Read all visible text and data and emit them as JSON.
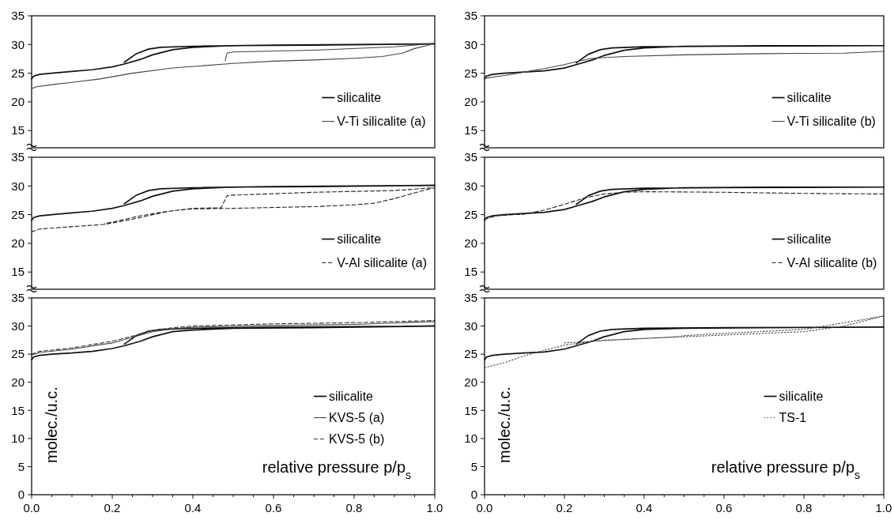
{
  "chart_data": [
    {
      "type": "line",
      "xlim": [
        0,
        1
      ],
      "ylim": [
        12,
        35
      ],
      "yticks": [
        15,
        20,
        25,
        30,
        35
      ],
      "tick_labels": "y",
      "legend": "bottom right",
      "series": [
        {
          "name": "silicalite",
          "color": "#111111",
          "line_style": "solid",
          "x": [
            0,
            0.005,
            0.02,
            0.05,
            0.1,
            0.15,
            0.2,
            0.23,
            0.27,
            0.3,
            0.35,
            0.4,
            0.5,
            0.7,
            1,
            0.6,
            0.4,
            0.32,
            0.29,
            0.26,
            0.23
          ],
          "values": [
            24,
            24.5,
            24.8,
            25,
            25.3,
            25.6,
            26.1,
            26.6,
            27.4,
            28.2,
            29.1,
            29.5,
            29.8,
            29.9,
            30.1,
            29.9,
            29.7,
            29.5,
            29.2,
            28.4,
            26.9
          ]
        },
        {
          "name": "V-Ti silicalite (a)",
          "color": "#444444",
          "line_style": "solid",
          "x": [
            0,
            0.01,
            0.05,
            0.1,
            0.17,
            0.25,
            0.35,
            0.5,
            0.6,
            0.7,
            0.8,
            0.87,
            0.92,
            0.95,
            0.98,
            1,
            0.9,
            0.7,
            0.5,
            0.485,
            0.48
          ],
          "values": [
            22.3,
            22.6,
            23,
            23.4,
            24,
            25,
            25.9,
            26.7,
            27.1,
            27.3,
            27.6,
            27.9,
            28.5,
            29.3,
            29.8,
            30.2,
            29.6,
            29,
            28.7,
            28.5,
            27.2
          ]
        }
      ]
    },
    {
      "type": "line",
      "xlim": [
        0,
        1
      ],
      "ylim": [
        12,
        35
      ],
      "yticks": [
        15,
        20,
        25,
        30,
        35
      ],
      "tick_labels": "y",
      "legend": "bottom right",
      "series": [
        {
          "name": "silicalite",
          "color": "#111111",
          "line_style": "solid",
          "x": [
            0,
            0.005,
            0.02,
            0.05,
            0.1,
            0.15,
            0.2,
            0.23,
            0.27,
            0.3,
            0.35,
            0.4,
            0.5,
            0.7,
            1,
            0.6,
            0.4,
            0.32,
            0.29,
            0.26,
            0.23
          ],
          "values": [
            24,
            24.5,
            24.8,
            25,
            25.2,
            25.4,
            25.9,
            26.5,
            27.3,
            28.1,
            29,
            29.4,
            29.7,
            29.8,
            29.8,
            29.7,
            29.6,
            29.4,
            29.1,
            28.3,
            26.8
          ]
        },
        {
          "name": "V-Ti silicalite (b)",
          "color": "#444444",
          "line_style": "solid",
          "x": [
            0,
            0.05,
            0.1,
            0.15,
            0.2,
            0.23,
            0.27,
            0.35,
            0.5,
            0.7,
            0.9,
            1
          ],
          "values": [
            24.1,
            24.6,
            25.2,
            25.8,
            26.5,
            27,
            27.6,
            27.9,
            28.2,
            28.4,
            28.5,
            28.8
          ]
        }
      ]
    },
    {
      "type": "line",
      "xlim": [
        0,
        1
      ],
      "ylim": [
        12,
        35
      ],
      "yticks": [
        15,
        20,
        25,
        30,
        35
      ],
      "tick_labels": "y",
      "legend": "bottom right",
      "series": [
        {
          "name": "silicalite",
          "color": "#111111",
          "line_style": "solid",
          "x": [
            0,
            0.005,
            0.02,
            0.05,
            0.1,
            0.15,
            0.2,
            0.23,
            0.27,
            0.3,
            0.35,
            0.4,
            0.5,
            0.7,
            1,
            0.6,
            0.4,
            0.32,
            0.29,
            0.26,
            0.23
          ],
          "values": [
            24,
            24.5,
            24.8,
            25,
            25.3,
            25.6,
            26.1,
            26.6,
            27.4,
            28.2,
            29.1,
            29.5,
            29.8,
            29.9,
            30.1,
            29.9,
            29.7,
            29.5,
            29.2,
            28.4,
            26.9
          ]
        },
        {
          "name": "V-Al silicalite (a)",
          "color": "#222222",
          "line_style": "dashed",
          "x": [
            0,
            0.02,
            0.1,
            0.18,
            0.25,
            0.3,
            0.35,
            0.4,
            0.5,
            0.7,
            0.8,
            0.85,
            0.9,
            0.95,
            1,
            0.9,
            0.7,
            0.5,
            0.485,
            0.47,
            0.4,
            0.33,
            0.27,
            0.22,
            0.18
          ],
          "values": [
            22,
            22.5,
            22.9,
            23.3,
            24.2,
            25,
            25.7,
            26,
            26.1,
            26.4,
            26.7,
            27,
            27.8,
            28.8,
            29.7,
            29.2,
            28.9,
            28.4,
            28.3,
            26.2,
            26.1,
            25.5,
            24.8,
            24,
            23.4
          ]
        }
      ]
    },
    {
      "type": "line",
      "xlim": [
        0,
        1
      ],
      "ylim": [
        12,
        35
      ],
      "yticks": [
        15,
        20,
        25,
        30,
        35
      ],
      "tick_labels": "y",
      "legend": "bottom right",
      "series": [
        {
          "name": "silicalite",
          "color": "#111111",
          "line_style": "solid",
          "x": [
            0,
            0.005,
            0.02,
            0.05,
            0.1,
            0.15,
            0.2,
            0.23,
            0.27,
            0.3,
            0.35,
            0.4,
            0.5,
            0.7,
            1,
            0.6,
            0.4,
            0.32,
            0.29,
            0.26,
            0.23
          ],
          "values": [
            24,
            24.5,
            24.8,
            25,
            25.2,
            25.4,
            25.9,
            26.5,
            27.3,
            28.1,
            29,
            29.4,
            29.7,
            29.8,
            29.8,
            29.7,
            29.6,
            29.4,
            29.1,
            28.3,
            26.8
          ]
        },
        {
          "name": "V-Al silicalite (b)",
          "color": "#222222",
          "line_style": "dashed",
          "x": [
            0,
            0.03,
            0.1,
            0.15,
            0.2,
            0.25,
            0.3,
            0.35,
            0.4,
            0.6,
            0.8,
            1
          ],
          "values": [
            24.2,
            24.8,
            25.1,
            25.8,
            26.8,
            27.9,
            28.6,
            28.9,
            29,
            28.9,
            28.7,
            28.6
          ]
        }
      ]
    },
    {
      "type": "line",
      "xlim": [
        0,
        1
      ],
      "ylim": [
        0,
        35
      ],
      "yticks": [
        0,
        5,
        10,
        15,
        20,
        25,
        30,
        35
      ],
      "xticks": [
        {
          "value": 0,
          "label": "0.0"
        },
        {
          "value": 0.05,
          "label": null
        },
        {
          "value": 0.1,
          "label": null
        },
        {
          "value": 0.15,
          "label": null
        },
        {
          "value": 0.2,
          "label": "0.2"
        },
        {
          "value": 0.25,
          "label": null
        },
        {
          "value": 0.3,
          "label": null
        },
        {
          "value": 0.35,
          "label": null
        },
        {
          "value": 0.4,
          "label": "0.4"
        },
        {
          "value": 0.45,
          "label": null
        },
        {
          "value": 0.5,
          "label": null
        },
        {
          "value": 0.55,
          "label": null
        },
        {
          "value": 0.6,
          "label": "0.6"
        },
        {
          "value": 0.65,
          "label": null
        },
        {
          "value": 0.7,
          "label": null
        },
        {
          "value": 0.75,
          "label": null
        },
        {
          "value": 0.8,
          "label": "0.8"
        },
        {
          "value": 0.85,
          "label": null
        },
        {
          "value": 0.9,
          "label": null
        },
        {
          "value": 0.95,
          "label": null
        },
        {
          "value": 1,
          "label": "1.0"
        }
      ],
      "xlabel": "relative pressure p/p$_{s}$",
      "ylabel": "molec./u.c.",
      "legend": "right",
      "series": [
        {
          "name": "silicalite",
          "color": "#111111",
          "line_style": "solid",
          "x": [
            0,
            0.005,
            0.02,
            0.05,
            0.1,
            0.15,
            0.2,
            0.23,
            0.27,
            0.3,
            0.35,
            0.4,
            0.5,
            0.7,
            1,
            0.6,
            0.4,
            0.32,
            0.29,
            0.26,
            0.23
          ],
          "values": [
            24,
            24.5,
            24.8,
            25,
            25.2,
            25.5,
            26,
            26.5,
            27.3,
            28.1,
            29,
            29.3,
            29.6,
            29.7,
            30,
            29.8,
            29.6,
            29.4,
            29.1,
            28.3,
            26.8
          ]
        },
        {
          "name": "KVS-5 (a)",
          "color": "#444444",
          "line_style": "solid",
          "x": [
            0,
            0.02,
            0.1,
            0.2,
            0.25,
            0.3,
            0.35,
            0.4,
            0.6,
            0.8,
            1
          ],
          "values": [
            24.8,
            25.3,
            25.9,
            27,
            28,
            29,
            29.5,
            29.8,
            30.1,
            30.3,
            30.8
          ]
        },
        {
          "name": "KVS-5 (b)",
          "color": "#333333",
          "line_style": "dashed",
          "x": [
            0,
            0.02,
            0.1,
            0.2,
            0.25,
            0.3,
            0.35,
            0.4,
            0.6,
            0.8,
            1
          ],
          "values": [
            25,
            25.5,
            26.1,
            27.3,
            28.2,
            29.2,
            29.7,
            30,
            30.4,
            30.6,
            31
          ]
        }
      ]
    },
    {
      "type": "line",
      "xlim": [
        0,
        1
      ],
      "ylim": [
        0,
        35
      ],
      "yticks": [
        0,
        5,
        10,
        15,
        20,
        25,
        30,
        35
      ],
      "xticks": [
        {
          "value": 0,
          "label": "0.0"
        },
        {
          "value": 0.05,
          "label": null
        },
        {
          "value": 0.1,
          "label": null
        },
        {
          "value": 0.15,
          "label": null
        },
        {
          "value": 0.2,
          "label": "0.2"
        },
        {
          "value": 0.25,
          "label": null
        },
        {
          "value": 0.3,
          "label": null
        },
        {
          "value": 0.35,
          "label": null
        },
        {
          "value": 0.4,
          "label": "0.4"
        },
        {
          "value": 0.45,
          "label": null
        },
        {
          "value": 0.5,
          "label": null
        },
        {
          "value": 0.55,
          "label": null
        },
        {
          "value": 0.6,
          "label": "0.6"
        },
        {
          "value": 0.65,
          "label": null
        },
        {
          "value": 0.7,
          "label": null
        },
        {
          "value": 0.75,
          "label": null
        },
        {
          "value": 0.8,
          "label": "0.8"
        },
        {
          "value": 0.85,
          "label": null
        },
        {
          "value": 0.9,
          "label": null
        },
        {
          "value": 0.95,
          "label": null
        },
        {
          "value": 1,
          "label": "1.0"
        }
      ],
      "xlabel": "relative pressure p/p$_{s}$",
      "ylabel": "molec./u.c.",
      "legend": "right",
      "series": [
        {
          "name": "silicalite",
          "color": "#111111",
          "line_style": "solid",
          "x": [
            0,
            0.005,
            0.02,
            0.05,
            0.1,
            0.15,
            0.2,
            0.23,
            0.27,
            0.3,
            0.35,
            0.4,
            0.5,
            0.7,
            1,
            0.6,
            0.4,
            0.32,
            0.29,
            0.26,
            0.23
          ],
          "values": [
            24,
            24.5,
            24.8,
            25,
            25.2,
            25.4,
            25.9,
            26.5,
            27.3,
            28.1,
            29,
            29.4,
            29.6,
            29.7,
            29.8,
            29.7,
            29.6,
            29.4,
            29.1,
            28.3,
            26.8
          ]
        },
        {
          "name": "TS-1",
          "color": "#444444",
          "line_style": "dotted",
          "x": [
            0,
            0.05,
            0.1,
            0.15,
            0.2,
            0.25,
            0.3,
            0.4,
            0.5,
            0.6,
            0.8,
            0.9,
            1,
            0.92,
            0.8,
            0.6,
            0.5,
            0.48,
            0.35,
            0.27,
            0.2
          ],
          "values": [
            22.6,
            23.5,
            24.7,
            25.7,
            26.6,
            27.1,
            27.5,
            27.8,
            28.1,
            28.4,
            29,
            30,
            31.8,
            30.8,
            29.4,
            28.7,
            28.3,
            28.1,
            27.6,
            27.3,
            27
          ]
        }
      ]
    }
  ]
}
